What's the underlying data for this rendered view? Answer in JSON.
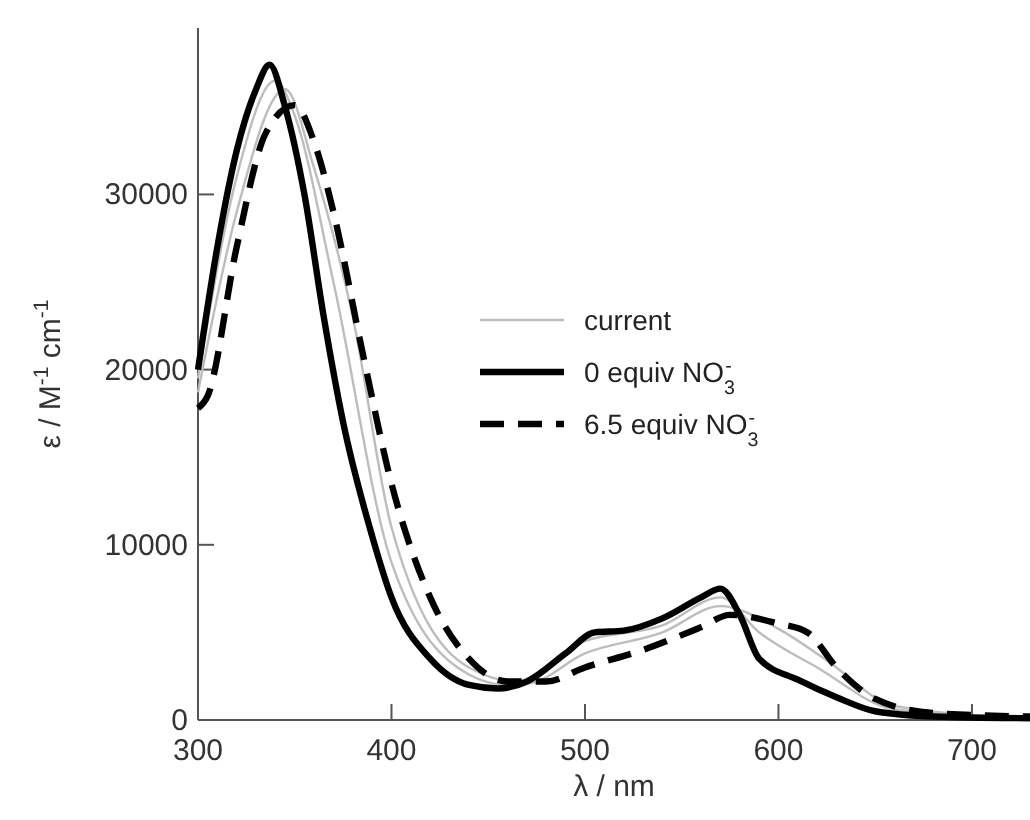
{
  "chart_data": {
    "type": "line",
    "xlabel": "λ / nm",
    "ylabel": "ε / M$^{-1}$ cm$^{-1}$",
    "xlim": [
      300,
      730
    ],
    "ylim": [
      0,
      39500
    ],
    "xticks": [
      300,
      400,
      500,
      600,
      700
    ],
    "yticks": [
      0,
      10000,
      20000,
      30000
    ],
    "legend": "right",
    "grid": false,
    "marker": "none",
    "series": [
      {
        "name": "current",
        "color": "#bdbdbd",
        "line_style": "solid",
        "x": [
          300,
          320,
          340,
          350,
          370,
          400,
          440,
          460,
          500,
          540,
          570,
          590,
          620,
          660,
          730
        ],
        "values": [
          19500,
          31000,
          36500,
          34500,
          25000,
          9000,
          2600,
          2000,
          4500,
          5400,
          7000,
          5000,
          3000,
          600,
          100
        ]
      },
      {
        "color": "#bdbdbd",
        "line_style": "solid",
        "x": [
          300,
          320,
          345,
          360,
          380,
          400,
          440,
          470,
          500,
          540,
          570,
          600,
          625,
          660,
          730
        ],
        "values": [
          18700,
          29000,
          36000,
          31500,
          23000,
          11000,
          3000,
          2100,
          3800,
          5000,
          6500,
          5200,
          3400,
          800,
          100
        ]
      },
      {
        "name": "0 equiv NO$_{3}$$^{-}$",
        "color": "#000000",
        "line_style": "solid",
        "x": [
          300,
          310,
          320,
          330,
          337,
          345,
          355,
          365,
          375,
          390,
          400,
          420,
          440,
          455,
          470,
          490,
          505,
          520,
          540,
          560,
          570,
          580,
          590,
          610,
          630,
          650,
          680,
          730
        ],
        "values": [
          20000,
          27000,
          32500,
          36000,
          37400,
          35000,
          30000,
          23000,
          17000,
          10500,
          7000,
          3500,
          2000,
          1800,
          2200,
          3800,
          5000,
          5100,
          5800,
          7000,
          7500,
          6000,
          3500,
          2300,
          1300,
          500,
          200,
          100
        ]
      },
      {
        "name": "6.5 equiv NO$_{3}$$^{-}$",
        "color": "#000000",
        "line_style": "dashed",
        "x": [
          300,
          305,
          320,
          335,
          350,
          360,
          370,
          385,
          400,
          420,
          440,
          460,
          480,
          500,
          530,
          560,
          575,
          600,
          615,
          630,
          650,
          680,
          730
        ],
        "values": [
          17800,
          18500,
          27000,
          33500,
          35100,
          33000,
          29000,
          21000,
          13500,
          7000,
          3500,
          2200,
          2200,
          3000,
          4000,
          5300,
          6000,
          5500,
          5000,
          3000,
          1200,
          400,
          200
        ]
      }
    ]
  }
}
